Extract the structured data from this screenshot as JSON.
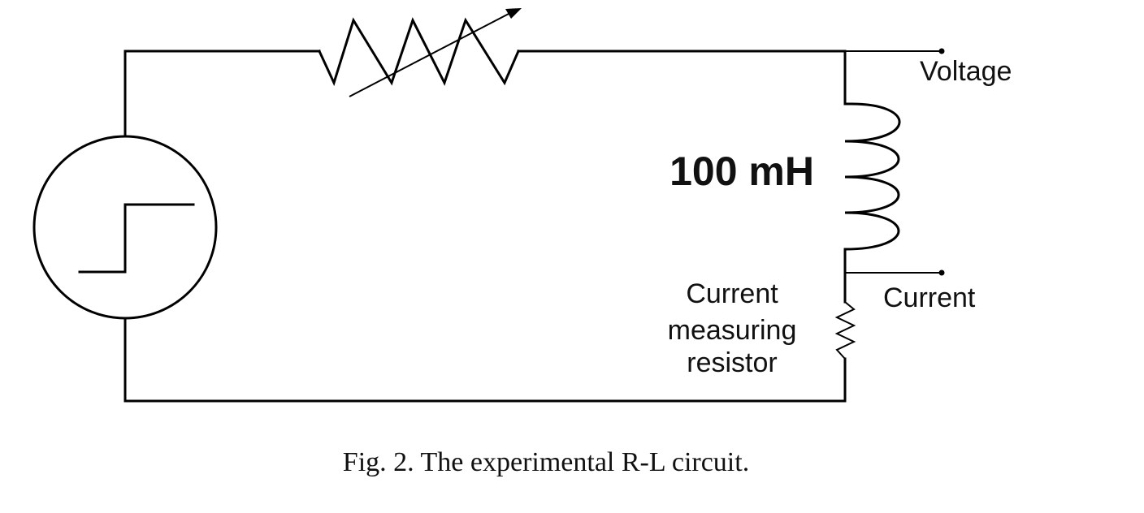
{
  "labels": {
    "voltage": "Voltage",
    "inductance": "100 mH",
    "current": "Current",
    "measuring_resistor": [
      "Current",
      "measuring",
      "resistor"
    ]
  },
  "caption": "Fig. 2. The experimental R-L circuit."
}
